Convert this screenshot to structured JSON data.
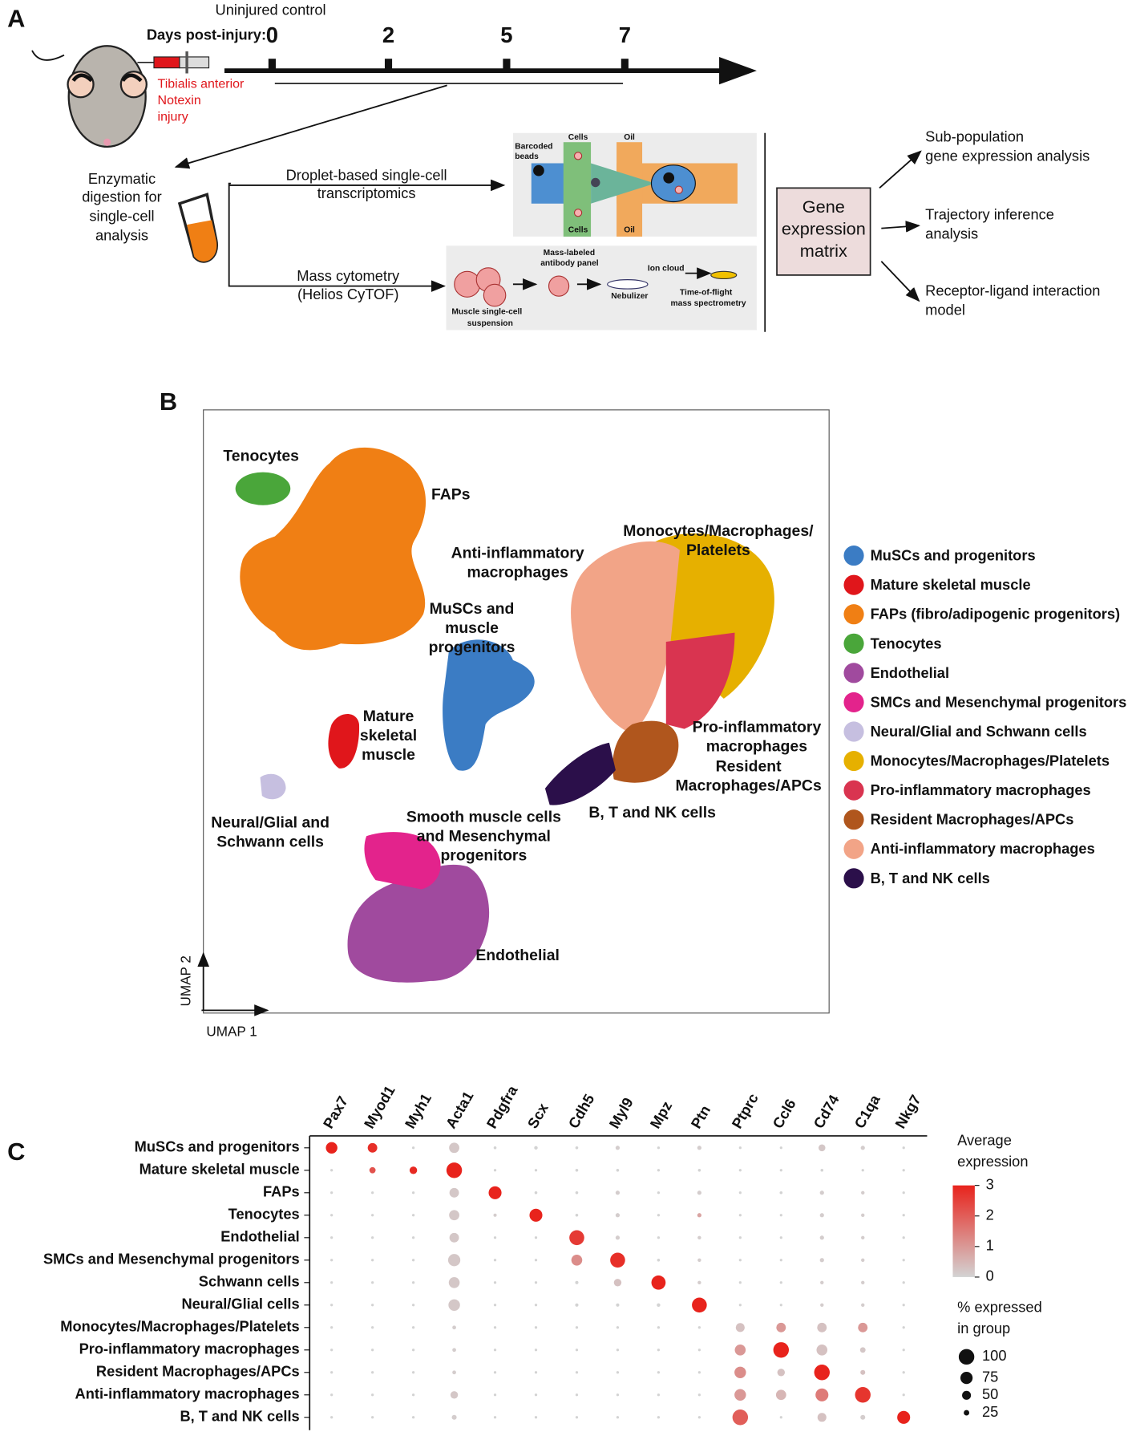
{
  "panel_a": {
    "label": "A",
    "control_label": "Uninjured control",
    "days_label": "Days post-injury:",
    "days": [
      {
        "label": "0",
        "color": "#f26d6d"
      },
      {
        "label": "2",
        "color": "#8cb22a"
      },
      {
        "label": "5",
        "color": "#2fb3c6"
      },
      {
        "label": "7",
        "color": "#9a7bb8"
      }
    ],
    "injury": [
      "Tibialis anterior",
      "Notexin",
      "injury"
    ],
    "digestion": [
      "Enzymatic",
      "digestion for",
      "single-cell",
      "analysis"
    ],
    "droplet_method": [
      "Droplet-based single-cell",
      "transcriptomics"
    ],
    "mass_method": [
      "Mass cytometry",
      "(Helios CyTOF)"
    ],
    "droplet_inset": {
      "beads": [
        "Barcoded",
        "beads"
      ],
      "cells_top": "Cells",
      "oil_top": "Oil",
      "cells_bottom": "Cells",
      "oil_bottom": "Oil"
    },
    "mass_inset": {
      "suspension": [
        "Muscle single-cell",
        "suspension"
      ],
      "panel": [
        "Mass-labeled",
        "antibody panel"
      ],
      "nebulizer": "Nebulizer",
      "ion_cloud": "Ion cloud",
      "tof": [
        "Time-of-flight",
        "mass spectrometry"
      ]
    },
    "matrix": [
      "Gene",
      "expression",
      "matrix"
    ],
    "outputs": [
      [
        "Sub-population",
        "gene expression analysis"
      ],
      [
        "Trajectory inference",
        "analysis"
      ],
      [
        "Receptor-ligand interaction",
        "model"
      ]
    ]
  },
  "panel_b": {
    "label": "B",
    "cluster_labels": [
      {
        "lines": [
          "Tenocytes"
        ],
        "color": "#4aa63a"
      },
      {
        "lines": [
          "FAPs"
        ],
        "color": "#f07f14"
      },
      {
        "lines": [
          "Anti-inflammatory",
          "macrophages"
        ],
        "color": "#f2a487"
      },
      {
        "lines": [
          "Monocytes/Macrophages/",
          "Platelets"
        ],
        "color": "#e6b000"
      },
      {
        "lines": [
          "MuSCs and",
          "muscle",
          "progenitors"
        ],
        "color": "#3b7cc4"
      },
      {
        "lines": [
          "Mature",
          "skeletal",
          "muscle"
        ],
        "color": "#e0161b"
      },
      {
        "lines": [
          "Pro-inflammatory",
          "macrophages"
        ],
        "color": "#d93450"
      },
      {
        "lines": [
          "Resident",
          "Macrophages/APCs"
        ],
        "color": "#b0561d"
      },
      {
        "lines": [
          "B, T and NK cells"
        ],
        "color": "#2b0f4a"
      },
      {
        "lines": [
          "Neural/Glial and",
          "Schwann cells"
        ],
        "color": "#c6bfe0"
      },
      {
        "lines": [
          "Smooth muscle cells",
          "and Mesenchymal",
          "progenitors"
        ],
        "color": "#e3238c"
      },
      {
        "lines": [
          "Endothelial"
        ],
        "color": "#a04a9e"
      }
    ],
    "legend": [
      {
        "name": "MuSCs and progenitors",
        "color": "#3b7cc4"
      },
      {
        "name": "Mature skeletal muscle",
        "color": "#e0161b"
      },
      {
        "name": "FAPs (fibro/adipogenic progenitors)",
        "color": "#f07f14"
      },
      {
        "name": "Tenocytes",
        "color": "#4aa63a"
      },
      {
        "name": "Endothelial",
        "color": "#a04a9e"
      },
      {
        "name": "SMCs and Mesenchymal progenitors",
        "color": "#e3238c"
      },
      {
        "name": "Neural/Glial and Schwann cells",
        "color": "#c6bfe0"
      },
      {
        "name": "Monocytes/Macrophages/Platelets",
        "color": "#e6b000"
      },
      {
        "name": "Pro-inflammatory macrophages",
        "color": "#d93450"
      },
      {
        "name": "Resident Macrophages/APCs",
        "color": "#b0561d"
      },
      {
        "name": "Anti-inflammatory macrophages",
        "color": "#f2a487"
      },
      {
        "name": "B, T and NK cells",
        "color": "#2b0f4a"
      }
    ],
    "x_axis": "UMAP 1",
    "y_axis": "UMAP 2"
  },
  "panel_c": {
    "label": "C"
  },
  "chart_data": {
    "type": "dotplot",
    "genes": [
      "Pax7",
      "Myod1",
      "Myh1",
      "Acta1",
      "Pdgfra",
      "Scx",
      "Cdh5",
      "Myl9",
      "Mpz",
      "Ptn",
      "Ptprc",
      "Ccl6",
      "Cd74",
      "C1qa",
      "Nkg7"
    ],
    "series": [
      {
        "name": "MuSCs and progenitors",
        "color": "#3b7cc4",
        "values": [
          3,
          2.8,
          0,
          0.2,
          0,
          0,
          0,
          0.1,
          0,
          0.1,
          0,
          0,
          0.2,
          0.1,
          0
        ],
        "sizes": [
          70,
          55,
          3,
          60,
          5,
          10,
          5,
          15,
          3,
          15,
          3,
          3,
          35,
          15,
          3
        ]
      },
      {
        "name": "Mature skeletal muscle",
        "color": "#e0161b",
        "values": [
          0,
          2.2,
          2.9,
          3,
          0,
          0,
          0,
          0,
          0,
          0,
          0,
          0,
          0,
          0,
          0
        ],
        "sizes": [
          3,
          30,
          40,
          100,
          3,
          3,
          5,
          5,
          3,
          5,
          3,
          3,
          5,
          3,
          3
        ]
      },
      {
        "name": "FAPs",
        "color": "#f07f14",
        "values": [
          0,
          0,
          0,
          0.2,
          3,
          0,
          0,
          0.1,
          0,
          0.1,
          0,
          0,
          0.1,
          0.1,
          0
        ],
        "sizes": [
          3,
          3,
          3,
          55,
          80,
          5,
          5,
          15,
          3,
          15,
          3,
          5,
          15,
          10,
          3
        ]
      },
      {
        "name": "Tenocytes",
        "color": "#4aa63a",
        "values": [
          0,
          0,
          0,
          0.2,
          0.1,
          3,
          0,
          0.1,
          0,
          0.8,
          0,
          0,
          0.1,
          0.1,
          0
        ],
        "sizes": [
          3,
          3,
          3,
          60,
          8,
          80,
          5,
          15,
          3,
          15,
          3,
          3,
          15,
          10,
          3
        ]
      },
      {
        "name": "Endothelial",
        "color": "#a04a9e",
        "values": [
          0,
          0,
          0,
          0.2,
          0,
          0,
          2.6,
          0.1,
          0,
          0.1,
          0,
          0,
          0.1,
          0.1,
          0
        ],
        "sizes": [
          3,
          3,
          3,
          55,
          3,
          3,
          95,
          15,
          3,
          10,
          3,
          3,
          15,
          10,
          3
        ]
      },
      {
        "name": "SMCs and Mesenchymal progenitors",
        "color": "#e3238c",
        "values": [
          0,
          0,
          0,
          0.2,
          0,
          0,
          1.2,
          2.8,
          0,
          0.1,
          0,
          0,
          0.1,
          0.1,
          0
        ],
        "sizes": [
          3,
          3,
          3,
          75,
          3,
          3,
          65,
          95,
          5,
          10,
          3,
          3,
          15,
          10,
          3
        ]
      },
      {
        "name": "Schwann cells",
        "color": "#c6bfe0",
        "values": [
          0,
          0,
          0,
          0.2,
          0,
          0,
          0,
          0.3,
          3,
          0.1,
          0,
          0,
          0.1,
          0.1,
          0
        ],
        "sizes": [
          3,
          3,
          3,
          65,
          3,
          3,
          8,
          40,
          90,
          10,
          3,
          3,
          10,
          10,
          3
        ]
      },
      {
        "name": "Neural/Glial cells",
        "color": "#c6bfe0",
        "values": [
          0,
          0,
          0,
          0.2,
          0,
          0,
          0,
          0,
          0,
          3,
          0,
          0,
          0.1,
          0.1,
          0
        ],
        "sizes": [
          3,
          3,
          3,
          70,
          3,
          3,
          8,
          8,
          10,
          95,
          3,
          3,
          10,
          10,
          3
        ]
      },
      {
        "name": "Monocytes/Macrophages/Platelets",
        "color": "#e6b000",
        "values": [
          0,
          0,
          0,
          0.1,
          0,
          0,
          0,
          0,
          0,
          0,
          0.3,
          1,
          0.3,
          1,
          0
        ],
        "sizes": [
          3,
          3,
          3,
          12,
          3,
          3,
          3,
          3,
          3,
          3,
          50,
          55,
          55,
          55,
          3
        ]
      },
      {
        "name": "Pro-inflammatory macrophages",
        "color": "#d93450",
        "values": [
          0,
          0,
          0,
          0.1,
          0,
          0,
          0,
          0,
          0,
          0,
          1,
          3,
          0.3,
          0.2,
          0
        ],
        "sizes": [
          3,
          3,
          3,
          12,
          3,
          3,
          3,
          3,
          3,
          3,
          65,
          100,
          65,
          25,
          3
        ]
      },
      {
        "name": "Resident Macrophages/APCs",
        "color": "#b0561d",
        "values": [
          0,
          0,
          0,
          0.1,
          0,
          0,
          0,
          0,
          0,
          0,
          1.2,
          0.3,
          3,
          0.3,
          0
        ],
        "sizes": [
          3,
          3,
          3,
          12,
          3,
          3,
          3,
          3,
          3,
          3,
          70,
          40,
          100,
          20,
          3
        ]
      },
      {
        "name": "Anti-inflammatory macrophages",
        "color": "#f2a487",
        "values": [
          0,
          0,
          0,
          0.2,
          0,
          0,
          0,
          0,
          0,
          0,
          1,
          0.5,
          1.5,
          2.7,
          0
        ],
        "sizes": [
          3,
          3,
          3,
          40,
          3,
          3,
          3,
          3,
          3,
          3,
          70,
          60,
          80,
          100,
          3
        ]
      },
      {
        "name": "B, T and NK cells",
        "color": "#2b0f4a",
        "values": [
          0,
          0,
          0,
          0.1,
          0,
          0,
          0,
          0,
          0,
          0,
          2,
          0,
          0.3,
          0.1,
          3
        ],
        "sizes": [
          3,
          3,
          3,
          20,
          3,
          3,
          3,
          3,
          3,
          3,
          100,
          3,
          50,
          20,
          80
        ]
      }
    ],
    "color_title": [
      "Average",
      "expression"
    ],
    "clim": [
      0,
      3
    ],
    "color_ticks": [
      0,
      1,
      2,
      3
    ],
    "low_color": "#d3d3d3",
    "high_color": "#e8231c",
    "size_title": [
      "% expressed",
      "in group"
    ],
    "size_ticks": [
      100,
      75,
      50,
      25
    ]
  }
}
